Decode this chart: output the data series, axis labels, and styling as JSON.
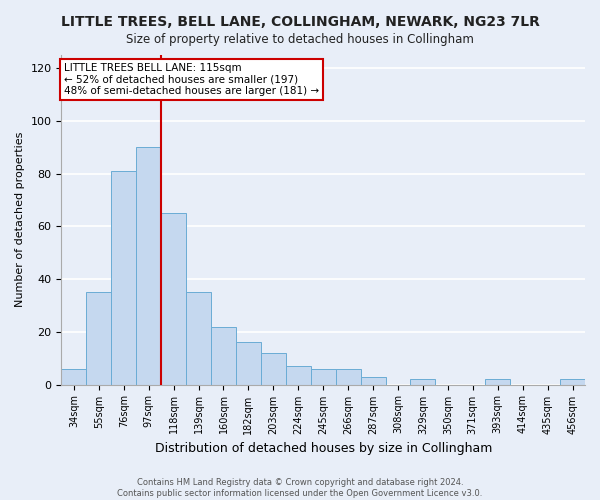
{
  "title": "LITTLE TREES, BELL LANE, COLLINGHAM, NEWARK, NG23 7LR",
  "subtitle": "Size of property relative to detached houses in Collingham",
  "xlabel": "Distribution of detached houses by size in Collingham",
  "ylabel": "Number of detached properties",
  "bar_labels": [
    "34sqm",
    "55sqm",
    "76sqm",
    "97sqm",
    "118sqm",
    "139sqm",
    "160sqm",
    "182sqm",
    "203sqm",
    "224sqm",
    "245sqm",
    "266sqm",
    "287sqm",
    "308sqm",
    "329sqm",
    "350sqm",
    "371sqm",
    "393sqm",
    "414sqm",
    "435sqm",
    "456sqm"
  ],
  "bar_values": [
    6,
    35,
    81,
    90,
    65,
    35,
    22,
    16,
    12,
    7,
    6,
    6,
    3,
    0,
    2,
    0,
    0,
    2,
    0,
    0,
    2
  ],
  "bar_color": "#c5d8ef",
  "bar_edge_color": "#6aacd5",
  "vline_x": 4.0,
  "vline_color": "#cc0000",
  "annotation_title": "LITTLE TREES BELL LANE: 115sqm",
  "annotation_line1": "← 52% of detached houses are smaller (197)",
  "annotation_line2": "48% of semi-detached houses are larger (181) →",
  "annotation_box_color": "#ffffff",
  "annotation_box_edge": "#cc0000",
  "ylim": [
    0,
    125
  ],
  "yticks": [
    0,
    20,
    40,
    60,
    80,
    100,
    120
  ],
  "footer1": "Contains HM Land Registry data © Crown copyright and database right 2024.",
  "footer2": "Contains public sector information licensed under the Open Government Licence v3.0.",
  "bg_color": "#e8eef8",
  "plot_bg_color": "#e8eef8"
}
